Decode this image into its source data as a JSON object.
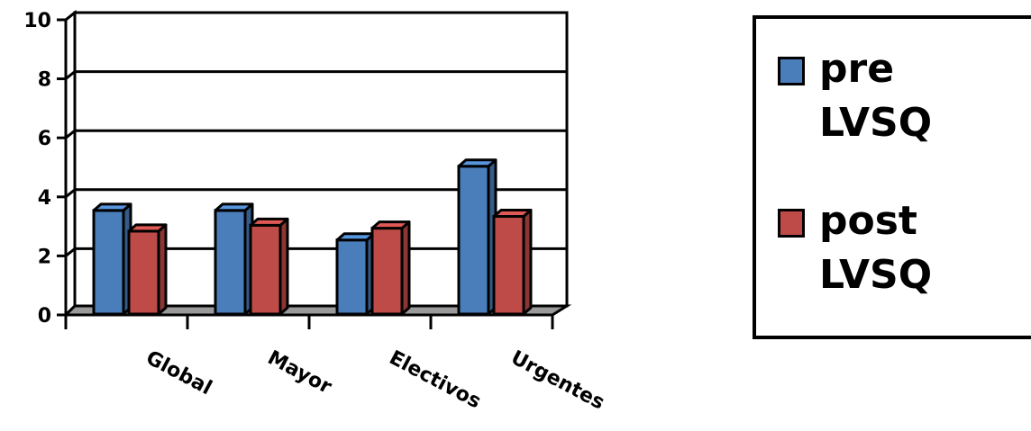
{
  "chart_data": {
    "type": "bar",
    "categories": [
      "Global",
      "Mayor",
      "Electivos",
      "Urgentes"
    ],
    "series": [
      {
        "name": "pre LVSQ",
        "values": [
          3.6,
          3.6,
          2.6,
          5.1
        ],
        "color": "#4a7ebb"
      },
      {
        "name": "post LVSQ",
        "values": [
          2.9,
          3.1,
          3.0,
          3.4
        ],
        "color": "#be4b48"
      }
    ],
    "ylim": [
      0,
      10
    ],
    "yticks": [
      "0",
      "2",
      "4",
      "6",
      "8",
      "10"
    ],
    "grid": true,
    "legend_position": "right",
    "style": "3d-column"
  }
}
